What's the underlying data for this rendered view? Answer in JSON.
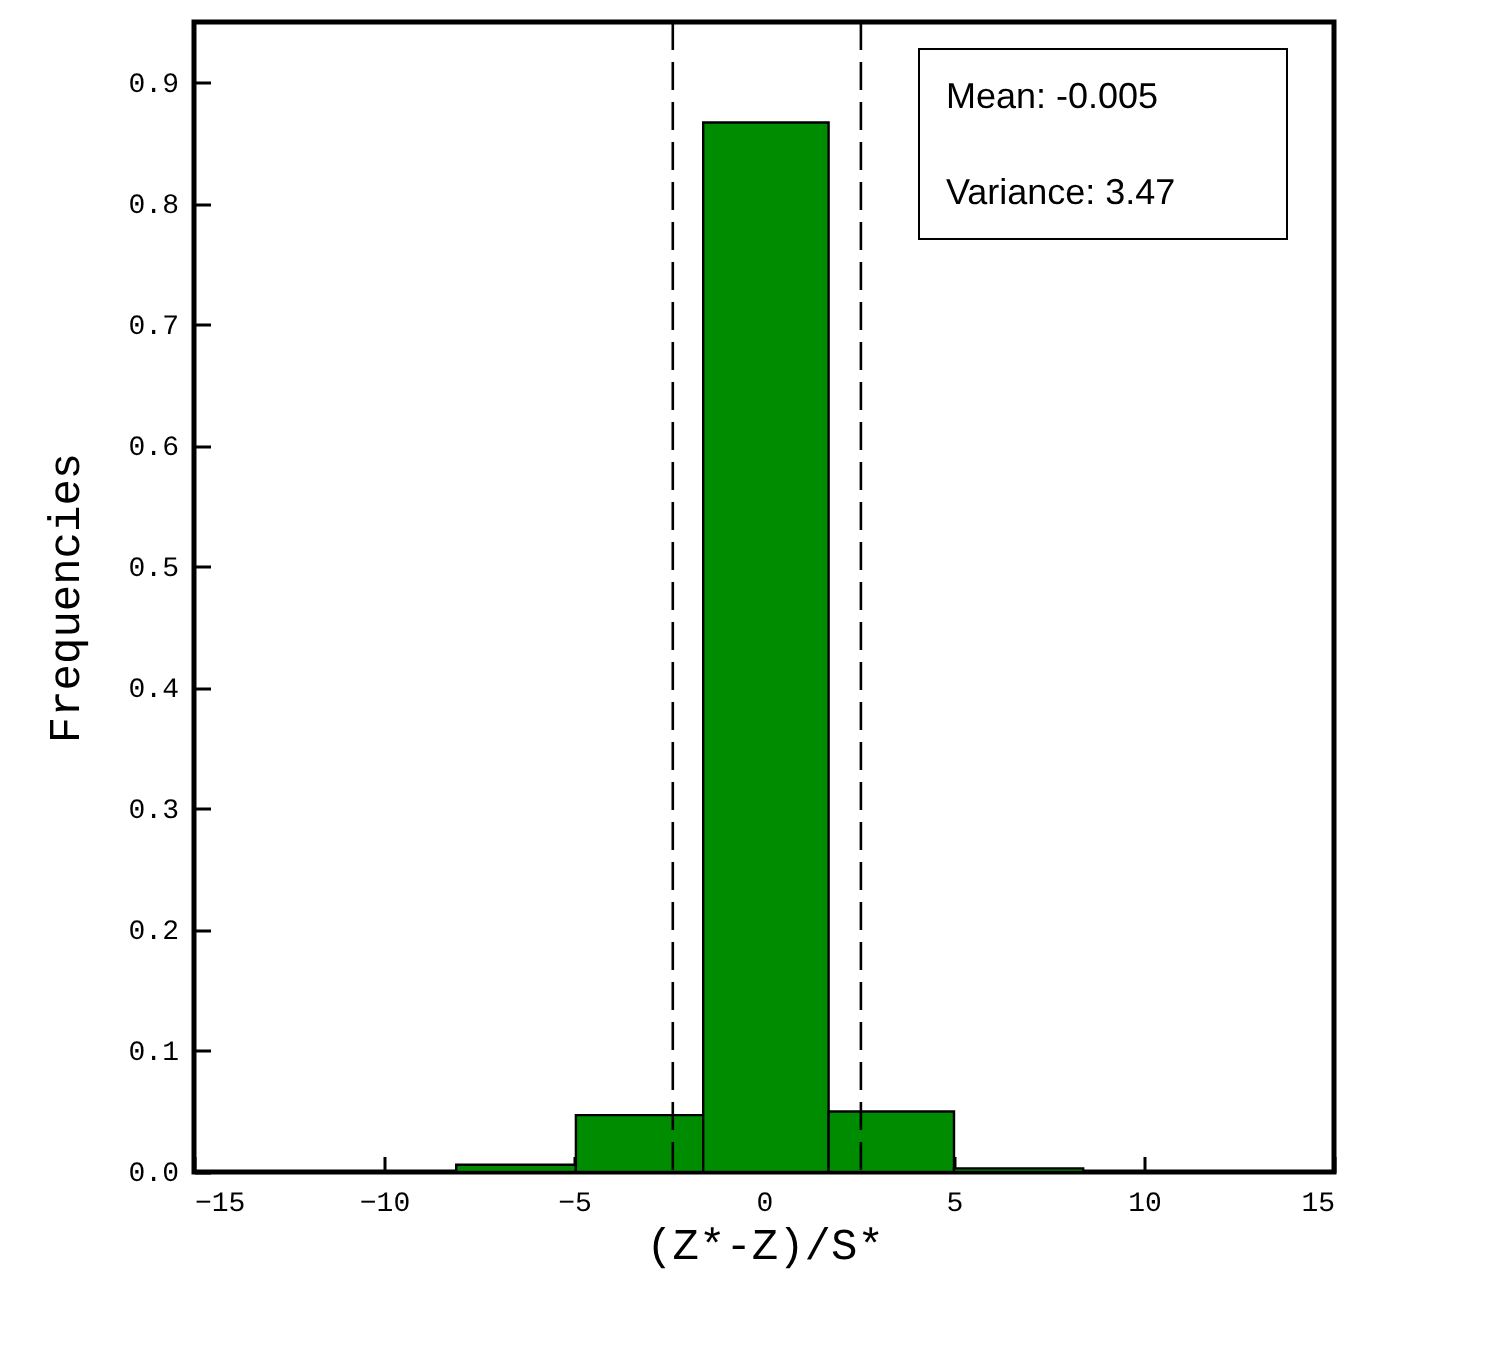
{
  "chart_data": {
    "type": "histogram",
    "xlabel": "(Z*-Z)/S*",
    "ylabel": "Frequencies",
    "bins": [
      -8.1,
      -4.95,
      -1.6,
      1.7,
      5.0,
      8.4
    ],
    "values": [
      0.006,
      0.047,
      0.867,
      0.05,
      0.003
    ],
    "color": "#008c00",
    "xlim": [
      -15,
      15
    ],
    "xticks": [
      -15,
      -10,
      -5,
      0,
      5,
      10,
      15
    ],
    "ylim": [
      0,
      0.95
    ],
    "yticks": [
      {
        "value": 0,
        "label": "0.0"
      },
      0.1,
      0.2,
      0.3,
      0.4,
      0.5,
      0.6,
      0.7,
      0.8,
      0.9
    ],
    "ref_lines": [
      {
        "axis": "x",
        "value": -2.4,
        "line_style": "dashed",
        "color": "#000000"
      },
      {
        "axis": "x",
        "value": 2.55,
        "line_style": "dashed",
        "color": "#000000"
      }
    ],
    "annotations": [
      "Mean: -0.005",
      "Variance: 3.47"
    ],
    "grid": false
  }
}
